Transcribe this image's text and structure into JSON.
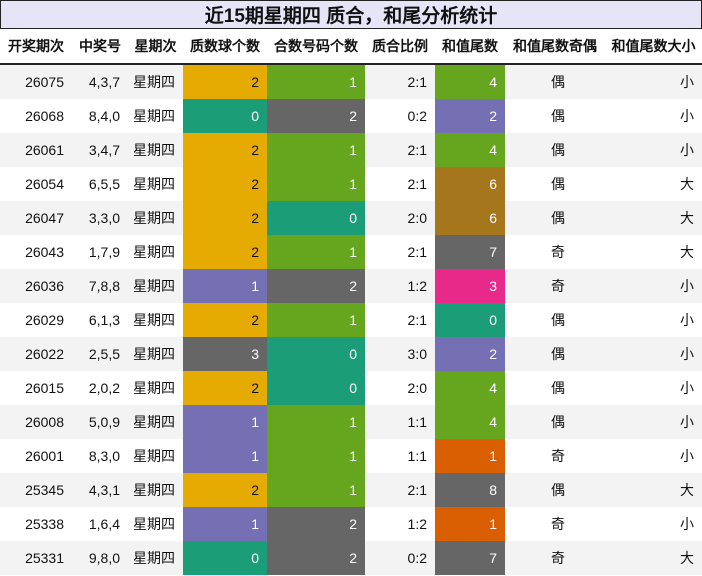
{
  "title": "近15期星期四 质合，和尾分析统计",
  "headers": [
    "开奖期次",
    "中奖号",
    "星期次",
    "质数球个数",
    "合数号码个数",
    "质合比例",
    "和值尾数",
    "和值尾数奇偶",
    "和值尾数大小"
  ],
  "colors": {
    "yellow": "#e6ab02",
    "green": "#66a61e",
    "teal": "#1b9e77",
    "gray": "#666666",
    "purple": "#7570b3",
    "brown": "#a6761d",
    "magenta": "#e7298a",
    "orange": "#d95f02"
  },
  "rows": [
    {
      "issue": "26075",
      "nums": "4,3,7",
      "weekday": "星期四",
      "prime": "2",
      "prime_color": "#e6ab02",
      "composite": "1",
      "composite_color": "#66a61e",
      "ratio": "2:1",
      "tail": "4",
      "tail_color": "#66a61e",
      "parity": "偶",
      "size": "小"
    },
    {
      "issue": "26068",
      "nums": "8,4,0",
      "weekday": "星期四",
      "prime": "0",
      "prime_color": "#1b9e77",
      "composite": "2",
      "composite_color": "#666666",
      "ratio": "0:2",
      "tail": "2",
      "tail_color": "#7570b3",
      "parity": "偶",
      "size": "小"
    },
    {
      "issue": "26061",
      "nums": "3,4,7",
      "weekday": "星期四",
      "prime": "2",
      "prime_color": "#e6ab02",
      "composite": "1",
      "composite_color": "#66a61e",
      "ratio": "2:1",
      "tail": "4",
      "tail_color": "#66a61e",
      "parity": "偶",
      "size": "小"
    },
    {
      "issue": "26054",
      "nums": "6,5,5",
      "weekday": "星期四",
      "prime": "2",
      "prime_color": "#e6ab02",
      "composite": "1",
      "composite_color": "#66a61e",
      "ratio": "2:1",
      "tail": "6",
      "tail_color": "#a6761d",
      "parity": "偶",
      "size": "大"
    },
    {
      "issue": "26047",
      "nums": "3,3,0",
      "weekday": "星期四",
      "prime": "2",
      "prime_color": "#e6ab02",
      "composite": "0",
      "composite_color": "#1b9e77",
      "ratio": "2:0",
      "tail": "6",
      "tail_color": "#a6761d",
      "parity": "偶",
      "size": "大"
    },
    {
      "issue": "26043",
      "nums": "1,7,9",
      "weekday": "星期四",
      "prime": "2",
      "prime_color": "#e6ab02",
      "composite": "1",
      "composite_color": "#66a61e",
      "ratio": "2:1",
      "tail": "7",
      "tail_color": "#666666",
      "parity": "奇",
      "size": "大"
    },
    {
      "issue": "26036",
      "nums": "7,8,8",
      "weekday": "星期四",
      "prime": "1",
      "prime_color": "#7570b3",
      "composite": "2",
      "composite_color": "#666666",
      "ratio": "1:2",
      "tail": "3",
      "tail_color": "#e7298a",
      "parity": "奇",
      "size": "小"
    },
    {
      "issue": "26029",
      "nums": "6,1,3",
      "weekday": "星期四",
      "prime": "2",
      "prime_color": "#e6ab02",
      "composite": "1",
      "composite_color": "#66a61e",
      "ratio": "2:1",
      "tail": "0",
      "tail_color": "#1b9e77",
      "parity": "偶",
      "size": "小"
    },
    {
      "issue": "26022",
      "nums": "2,5,5",
      "weekday": "星期四",
      "prime": "3",
      "prime_color": "#666666",
      "composite": "0",
      "composite_color": "#1b9e77",
      "ratio": "3:0",
      "tail": "2",
      "tail_color": "#7570b3",
      "parity": "偶",
      "size": "小"
    },
    {
      "issue": "26015",
      "nums": "2,0,2",
      "weekday": "星期四",
      "prime": "2",
      "prime_color": "#e6ab02",
      "composite": "0",
      "composite_color": "#1b9e77",
      "ratio": "2:0",
      "tail": "4",
      "tail_color": "#66a61e",
      "parity": "偶",
      "size": "小"
    },
    {
      "issue": "26008",
      "nums": "5,0,9",
      "weekday": "星期四",
      "prime": "1",
      "prime_color": "#7570b3",
      "composite": "1",
      "composite_color": "#66a61e",
      "ratio": "1:1",
      "tail": "4",
      "tail_color": "#66a61e",
      "parity": "偶",
      "size": "小"
    },
    {
      "issue": "26001",
      "nums": "8,3,0",
      "weekday": "星期四",
      "prime": "1",
      "prime_color": "#7570b3",
      "composite": "1",
      "composite_color": "#66a61e",
      "ratio": "1:1",
      "tail": "1",
      "tail_color": "#d95f02",
      "parity": "奇",
      "size": "小"
    },
    {
      "issue": "25345",
      "nums": "4,3,1",
      "weekday": "星期四",
      "prime": "2",
      "prime_color": "#e6ab02",
      "composite": "1",
      "composite_color": "#66a61e",
      "ratio": "2:1",
      "tail": "8",
      "tail_color": "#666666",
      "parity": "偶",
      "size": "大"
    },
    {
      "issue": "25338",
      "nums": "1,6,4",
      "weekday": "星期四",
      "prime": "1",
      "prime_color": "#7570b3",
      "composite": "2",
      "composite_color": "#666666",
      "ratio": "1:2",
      "tail": "1",
      "tail_color": "#d95f02",
      "parity": "奇",
      "size": "小"
    },
    {
      "issue": "25331",
      "nums": "9,8,0",
      "weekday": "星期四",
      "prime": "0",
      "prime_color": "#1b9e77",
      "composite": "2",
      "composite_color": "#666666",
      "ratio": "0:2",
      "tail": "7",
      "tail_color": "#666666",
      "parity": "奇",
      "size": "大"
    }
  ]
}
